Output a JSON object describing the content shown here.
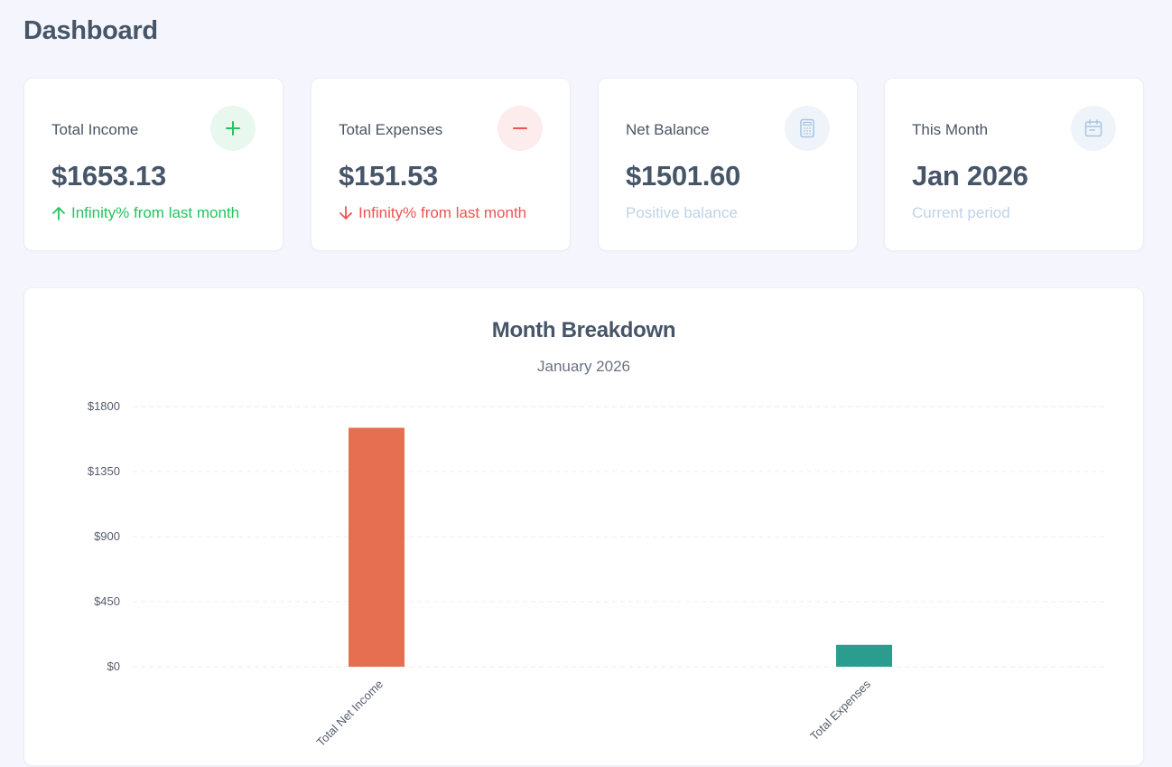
{
  "page": {
    "title": "Dashboard"
  },
  "cards": [
    {
      "label": "Total Income",
      "value": "$1653.13",
      "sub": "Infinity% from last month",
      "icon": "plus-icon",
      "trend": "up"
    },
    {
      "label": "Total Expenses",
      "value": "$151.53",
      "sub": "Infinity% from last month",
      "icon": "minus-icon",
      "trend": "down"
    },
    {
      "label": "Net Balance",
      "value": "$1501.60",
      "sub": "Positive balance",
      "icon": "calculator-icon"
    },
    {
      "label": "This Month",
      "value": "Jan 2026",
      "sub": "Current period",
      "icon": "calendar-icon"
    }
  ],
  "colors": {
    "income_accent": "#22c55e",
    "expense_accent": "#ef5350",
    "income_bar": "#e76f51",
    "expense_bar": "#2a9d8f"
  },
  "chart_data": {
    "type": "bar",
    "title": "Month Breakdown",
    "subtitle": "January 2026",
    "categories": [
      "Total Net Income",
      "Total Expenses"
    ],
    "values": [
      1653.13,
      151.53
    ],
    "bar_colors": [
      "#e76f51",
      "#2a9d8f"
    ],
    "ylim": [
      0,
      1800
    ],
    "yticks": [
      0,
      450,
      900,
      1350,
      1800
    ],
    "ytick_labels": [
      "$0",
      "$450",
      "$900",
      "$1350",
      "$1800"
    ],
    "grid": true,
    "legend": "none"
  }
}
